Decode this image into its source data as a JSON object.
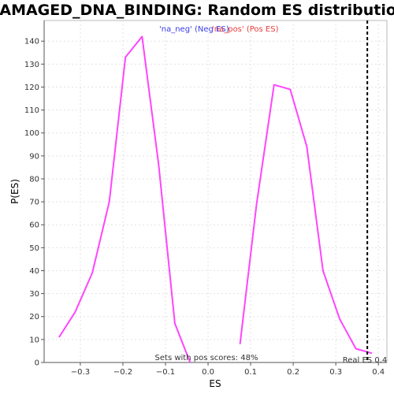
{
  "chart_data": {
    "type": "line",
    "title": "DAMAGED_DNA_BINDING: Random ES distribution",
    "xlabel": "ES",
    "ylabel": "P(ES)",
    "xlim": [
      -0.385,
      0.42
    ],
    "ylim": [
      0,
      149
    ],
    "xticks": [
      -0.3,
      -0.2,
      -0.1,
      0.0,
      0.1,
      0.2,
      0.3,
      0.4
    ],
    "xtick_labels": [
      "−0.3",
      "−0.2",
      "−0.1",
      "0.0",
      "0.1",
      "0.2",
      "0.3",
      "0.4"
    ],
    "yticks": [
      0,
      10,
      20,
      30,
      40,
      50,
      60,
      70,
      80,
      90,
      100,
      110,
      120,
      130,
      140
    ],
    "grid": true,
    "legend_position": "top-center",
    "series": [
      {
        "name": "'na_neg' (Neg ES)",
        "color": "#ff44ff",
        "x": [
          -0.35,
          -0.312,
          -0.272,
          -0.232,
          -0.194,
          -0.155,
          -0.116,
          -0.078,
          -0.042
        ],
        "y": [
          11,
          22,
          39,
          70,
          133,
          142,
          86,
          17,
          0
        ]
      },
      {
        "name": "'na_pos' (Pos ES)",
        "color": "#ff44ff",
        "x": [
          0.075,
          0.114,
          0.155,
          0.193,
          0.232,
          0.27,
          0.309,
          0.347,
          0.385
        ],
        "y": [
          8,
          69,
          121,
          119,
          94,
          40,
          19,
          6,
          4
        ]
      }
    ],
    "legend": [
      {
        "label": "'na_neg' (Neg ES)",
        "color": "#3b3be8"
      },
      {
        "label": "'na_pos' (Pos ES)",
        "color": "#e83b3b"
      }
    ],
    "reference_line": {
      "x": 0.374,
      "label": "Real ES 0.4",
      "color": "#000000"
    },
    "annotation": "Sets with pos scores: 48%"
  }
}
